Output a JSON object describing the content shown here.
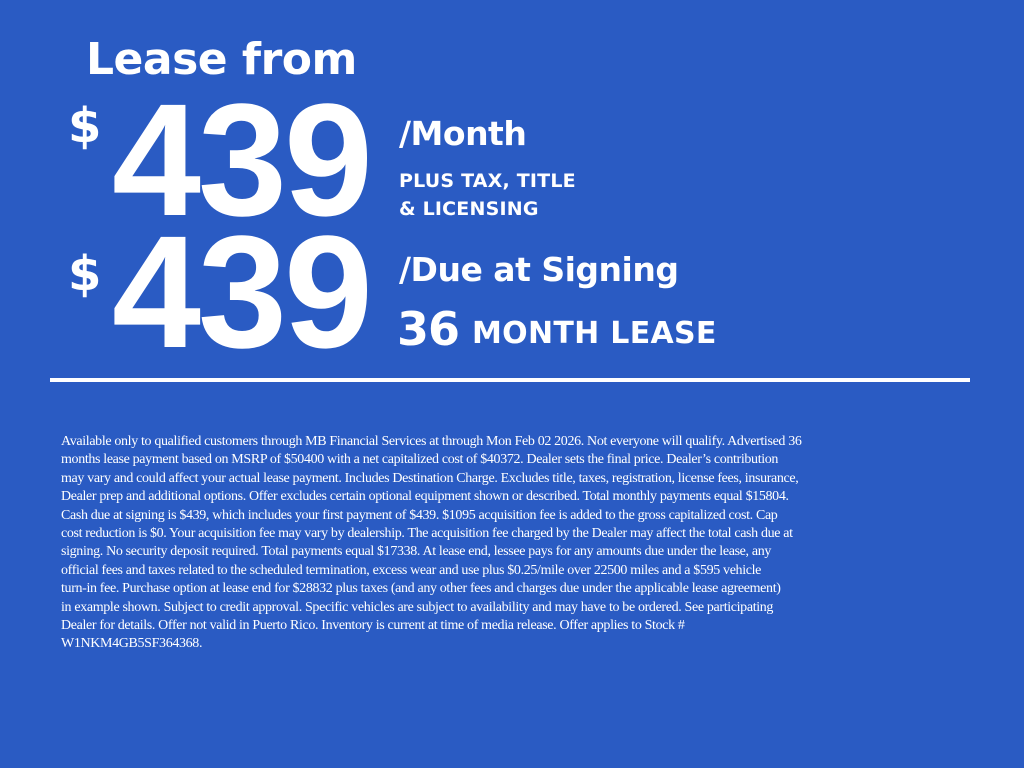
{
  "headline": "Lease from",
  "monthly": {
    "currency": "$",
    "amount": "439",
    "label": "/Month",
    "note_line1": "PLUS TAX, TITLE",
    "note_line2": "& LICENSING"
  },
  "signing": {
    "currency": "$",
    "amount": "439",
    "label": "/Due at Signing"
  },
  "term": {
    "months": "36",
    "label": "MONTH LEASE"
  },
  "disclaimer_lines": [
    "Available only to qualified customers through MB Financial Services at  through Mon Feb 02 2026. Not everyone will qualify. Advertised 36",
    "months lease payment based on MSRP of $50400 with a net capitalized cost of $40372. Dealer sets the final price. Dealer’s contribution",
    "may vary and could affect your actual lease payment. Includes Destination Charge. Excludes title, taxes, registration, license fees, insurance,",
    "Dealer prep and additional options. Offer excludes certain optional equipment shown or described. Total monthly payments equal $15804.",
    "Cash due at signing is $439, which includes your first payment of $439. $1095 acquisition fee is added to the gross capitalized cost. Cap",
    "cost reduction is $0. Your acquisition fee may vary by dealership. The acquisition fee charged by the Dealer may affect the total cash due at",
    "signing. No security deposit required. Total payments equal $17338. At lease end, lessee pays for any amounts due under the lease, any",
    "official fees and taxes related to the scheduled termination, excess wear and use plus $0.25/mile over 22500 miles and a $595 vehicle",
    "turn-in fee. Purchase option at lease end for $28832 plus taxes (and any other fees and charges due under the applicable lease agreement)",
    "in example shown. Subject to credit approval. Specific vehicles are subject to availability and may have to be ordered. See participating",
    "Dealer for details. Offer not valid in Puerto Rico. Inventory is current at time of media release. Offer applies to Stock #",
    "W1NKM4GB5SF364368."
  ],
  "colors": {
    "background": "#2a5bc3",
    "text": "#ffffff"
  }
}
